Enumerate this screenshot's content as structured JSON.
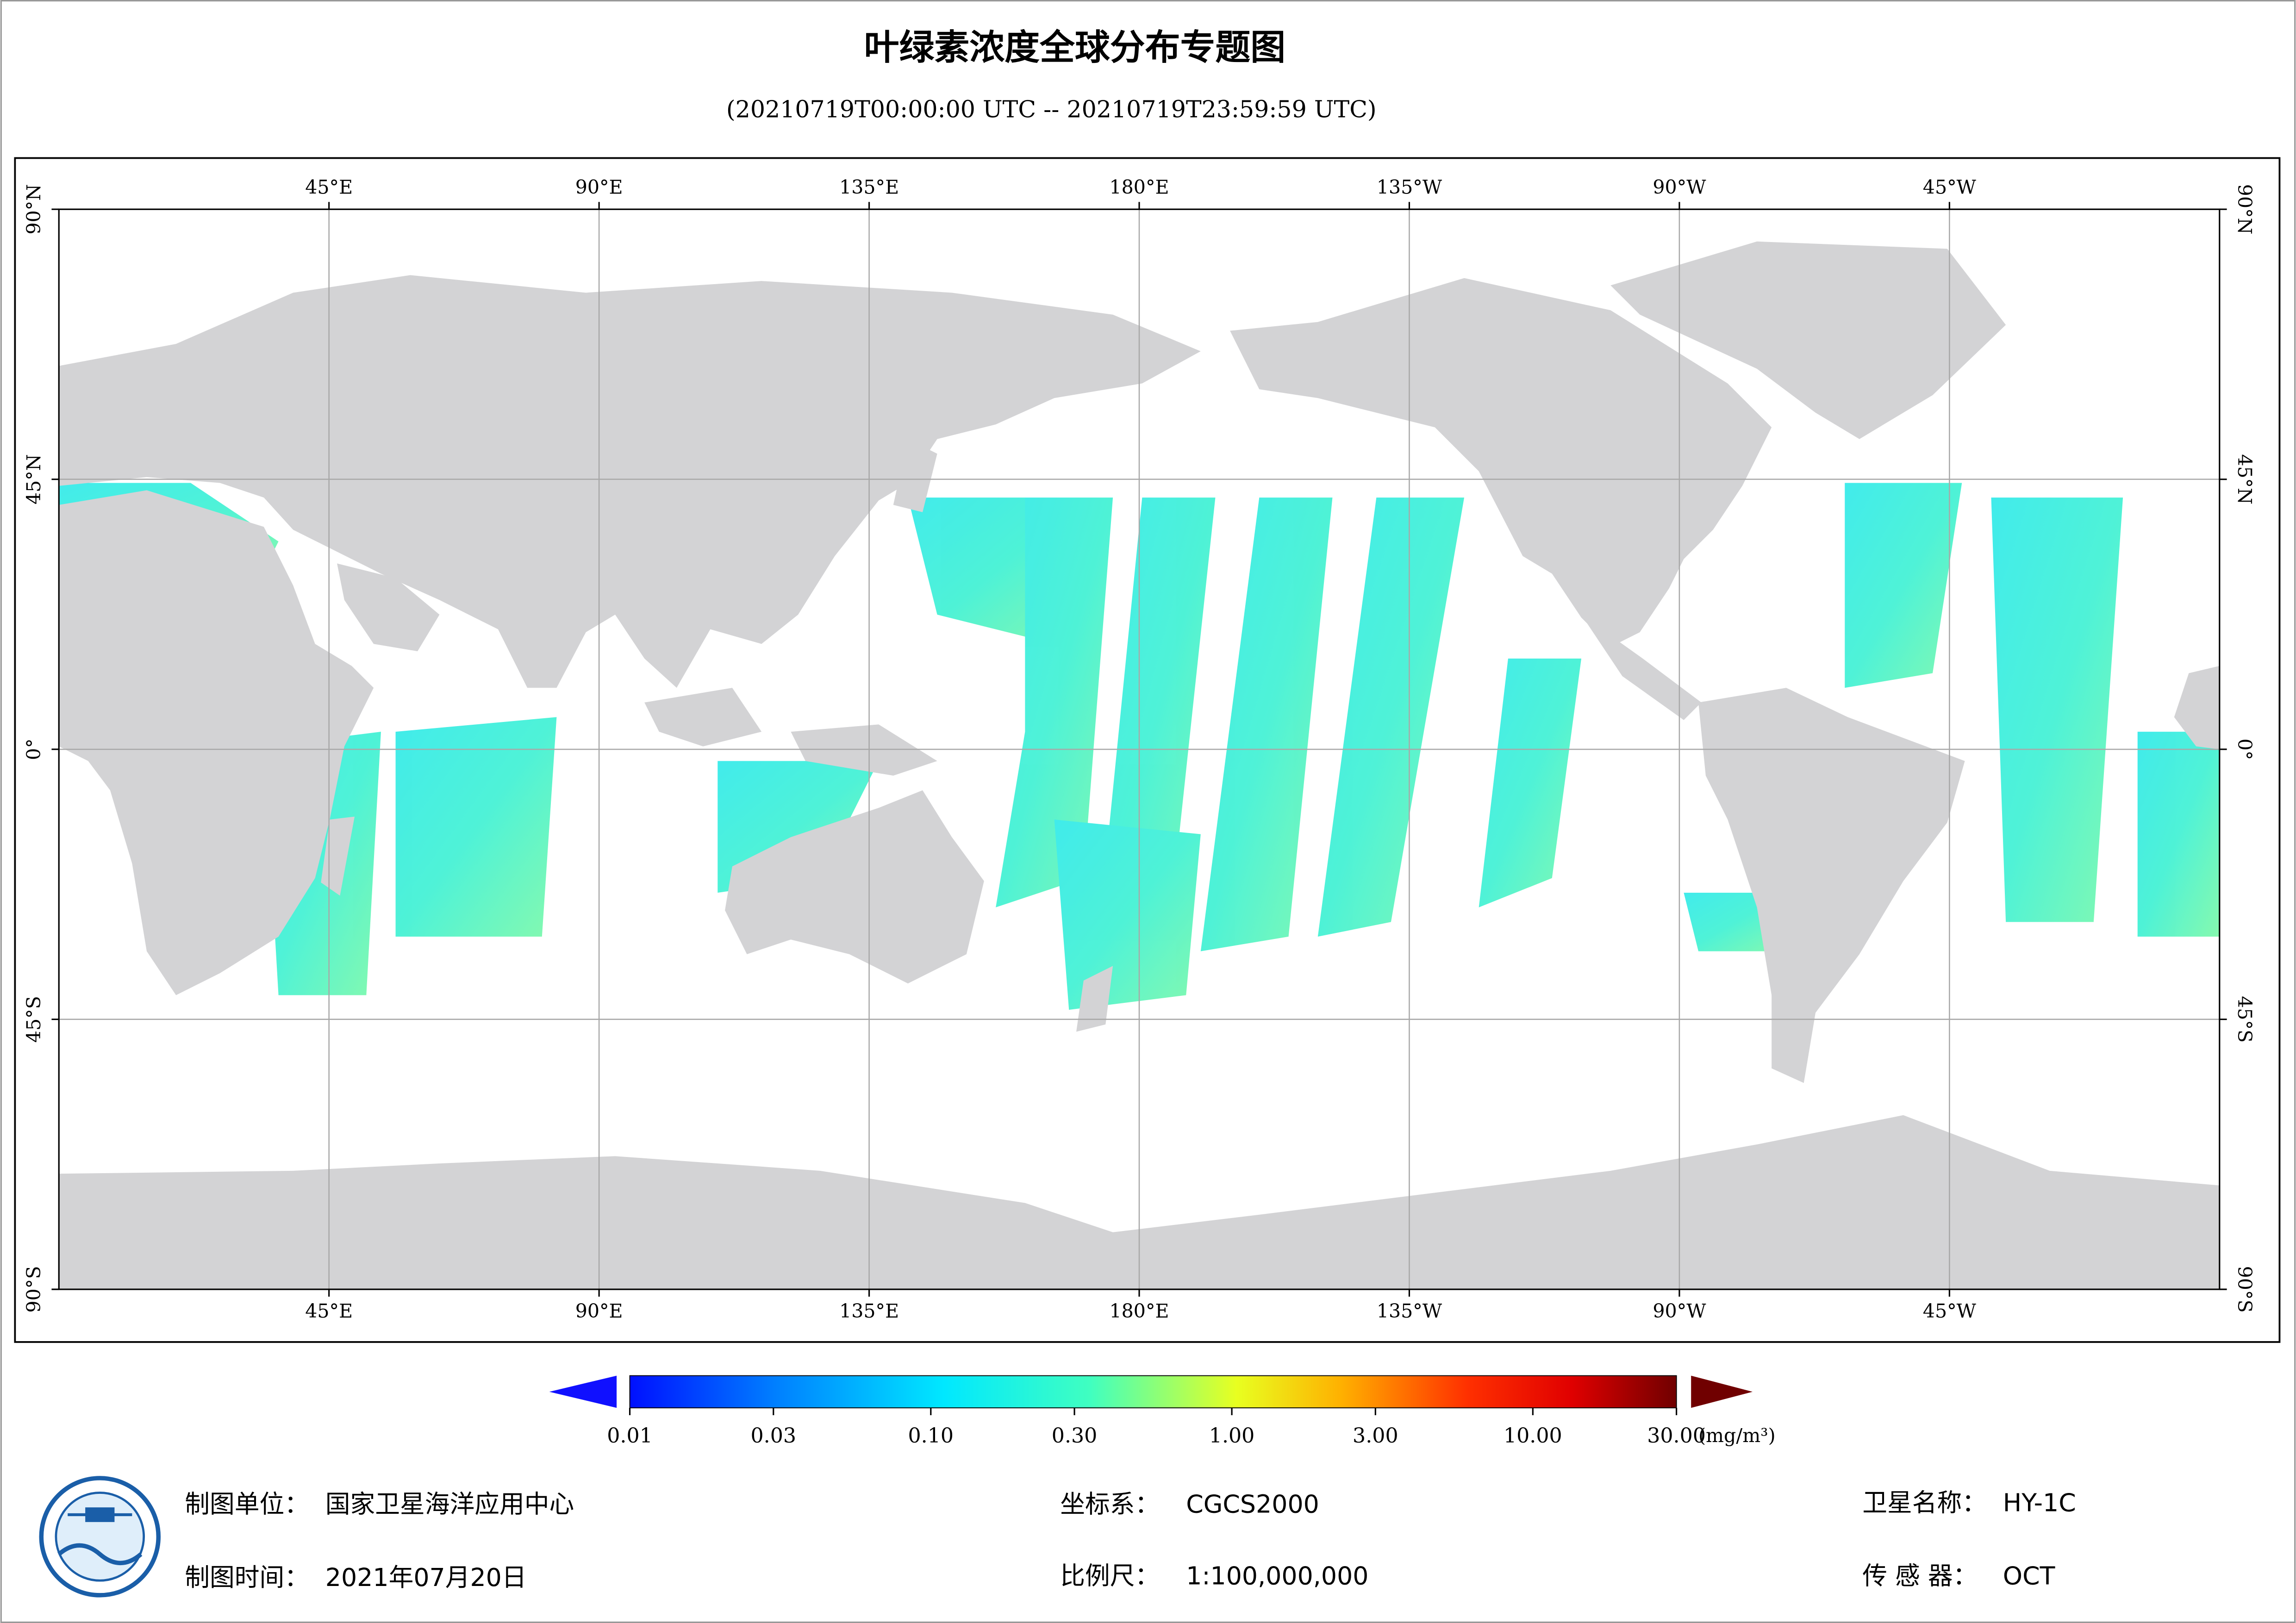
{
  "title": "叶绿素浓度全球分布专题图",
  "subtitle": "(20210719T00:00:00 UTC -- 20210719T23:59:59 UTC)",
  "map": {
    "xlim": [
      0,
      360
    ],
    "ylim": [
      -90,
      90
    ],
    "grid": true,
    "lon_ticks": [
      {
        "value": 45,
        "label": "45°E"
      },
      {
        "value": 90,
        "label": "90°E"
      },
      {
        "value": 135,
        "label": "135°E"
      },
      {
        "value": 180,
        "label": "180°E"
      },
      {
        "value": 225,
        "label": "135°W"
      },
      {
        "value": 270,
        "label": "90°W"
      },
      {
        "value": 315,
        "label": "45°W"
      }
    ],
    "lat_ticks": [
      {
        "value": 90,
        "label": "90°N"
      },
      {
        "value": 45,
        "label": "45°N"
      },
      {
        "value": 0,
        "label": "0°"
      },
      {
        "value": -45,
        "label": "45°S"
      },
      {
        "value": -90,
        "label": "90°S"
      }
    ]
  },
  "colorbar": {
    "lim": [
      0.01,
      30
    ],
    "log_scale": true,
    "unit": "(mg/m³)",
    "ticks": [
      0.01,
      0.03,
      {
        "value": 0.1,
        "label": "0.10"
      },
      {
        "value": 0.3,
        "label": "0.30"
      },
      {
        "value": 1,
        "label": "1.00"
      },
      {
        "value": 3,
        "label": "3.00"
      },
      {
        "value": 10,
        "label": "10.00"
      },
      {
        "value": 30,
        "label": "30.00"
      }
    ]
  },
  "footer": {
    "unit_label": "制图单位：",
    "unit": "国家卫星海洋应用中心",
    "date_label": "制图时间：",
    "date": "2021年07月20日",
    "crs_label": "坐标系：",
    "crs": "CGCS2000",
    "scale_label": "比例尺：",
    "scale": "1:100,000,000",
    "satellite_label": "卫星名称：",
    "satellite": "HY-1C",
    "sensor_label": "传 感 器：",
    "sensor": "OCT"
  }
}
